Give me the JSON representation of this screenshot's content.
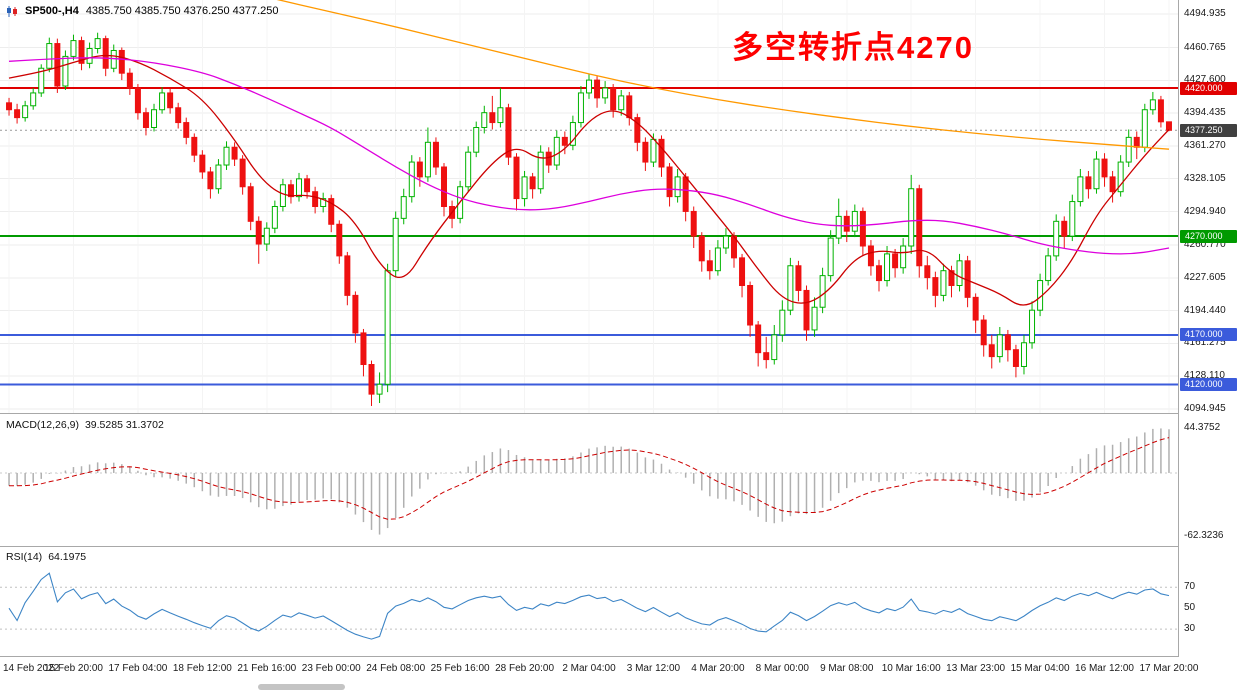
{
  "header": {
    "symbol": "SP500-,H4",
    "ohlc_text": "4385.750 4385.750 4376.250 4377.250"
  },
  "annotation": {
    "text": "多空转折点4270",
    "color": "#fe0000"
  },
  "panels": {
    "macd": {
      "label": "MACD(12,26,9)",
      "values": "39.5285 31.3702"
    },
    "rsi": {
      "label": "RSI(14)",
      "value": "64.1975"
    }
  },
  "chart_data": {
    "type": "candlestick",
    "symbol": "SP500-",
    "timeframe": "H4",
    "title": "SP500-,H4 4385.750 4385.750 4376.250 4377.250",
    "last_bar": {
      "open": 4385.75,
      "high": 4385.75,
      "low": 4376.25,
      "close": 4377.25
    },
    "ylim": [
      4094.945,
      4494.935
    ],
    "price_ticks": [
      "4494.935",
      "4460.765",
      "4427.600",
      "4394.435",
      "4361.270",
      "4328.105",
      "4294.940",
      "4260.770",
      "4227.605",
      "4194.440",
      "4161.275",
      "4128.110",
      "4094.945"
    ],
    "time_labels": [
      "14 Feb 2022",
      "15 Feb 20:00",
      "17 Feb 04:00",
      "18 Feb 12:00",
      "21 Feb 16:00",
      "23 Feb 00:00",
      "24 Feb 08:00",
      "25 Feb 16:00",
      "28 Feb 20:00",
      "2 Mar 04:00",
      "3 Mar 12:00",
      "4 Mar 20:00",
      "8 Mar 00:00",
      "9 Mar 08:00",
      "10 Mar 16:00",
      "13 Mar 23:00",
      "15 Mar 04:00",
      "16 Mar 12:00",
      "17 Mar 20:00"
    ],
    "bars_per_label": 8,
    "up_color": "#00b300",
    "down_color": "#ee1111",
    "grid_color": "#ededed",
    "candles": [
      [
        4405,
        4410,
        4392,
        4398
      ],
      [
        4398,
        4404,
        4384,
        4390
      ],
      [
        4390,
        4407,
        4386,
        4402
      ],
      [
        4402,
        4420,
        4398,
        4415
      ],
      [
        4415,
        4444,
        4411,
        4440
      ],
      [
        4440,
        4471,
        4436,
        4465
      ],
      [
        4465,
        4470,
        4415,
        4422
      ],
      [
        4422,
        4458,
        4418,
        4452
      ],
      [
        4452,
        4474,
        4448,
        4468
      ],
      [
        4468,
        4472,
        4438,
        4445
      ],
      [
        4445,
        4466,
        4440,
        4460
      ],
      [
        4460,
        4476,
        4455,
        4470
      ],
      [
        4470,
        4473,
        4432,
        4440
      ],
      [
        4440,
        4464,
        4436,
        4458
      ],
      [
        4458,
        4461,
        4428,
        4435
      ],
      [
        4435,
        4440,
        4413,
        4420
      ],
      [
        4420,
        4424,
        4388,
        4395
      ],
      [
        4395,
        4400,
        4372,
        4380
      ],
      [
        4380,
        4404,
        4376,
        4398
      ],
      [
        4398,
        4421,
        4394,
        4415
      ],
      [
        4415,
        4419,
        4394,
        4400
      ],
      [
        4400,
        4405,
        4379,
        4385
      ],
      [
        4385,
        4390,
        4363,
        4370
      ],
      [
        4370,
        4374,
        4345,
        4352
      ],
      [
        4352,
        4357,
        4328,
        4335
      ],
      [
        4335,
        4340,
        4308,
        4318
      ],
      [
        4318,
        4348,
        4313,
        4342
      ],
      [
        4342,
        4366,
        4337,
        4360
      ],
      [
        4360,
        4365,
        4341,
        4348
      ],
      [
        4348,
        4352,
        4312,
        4320
      ],
      [
        4320,
        4324,
        4276,
        4285
      ],
      [
        4285,
        4290,
        4242,
        4262
      ],
      [
        4262,
        4284,
        4255,
        4278
      ],
      [
        4278,
        4306,
        4273,
        4300
      ],
      [
        4300,
        4328,
        4295,
        4322
      ],
      [
        4322,
        4327,
        4303,
        4310
      ],
      [
        4310,
        4334,
        4305,
        4328
      ],
      [
        4328,
        4332,
        4308,
        4315
      ],
      [
        4315,
        4320,
        4293,
        4300
      ],
      [
        4300,
        4314,
        4294,
        4308
      ],
      [
        4308,
        4312,
        4274,
        4282
      ],
      [
        4282,
        4286,
        4242,
        4250
      ],
      [
        4250,
        4254,
        4200,
        4210
      ],
      [
        4210,
        4214,
        4162,
        4172
      ],
      [
        4172,
        4176,
        4128,
        4140
      ],
      [
        4140,
        4144,
        4098,
        4110
      ],
      [
        4110,
        4132,
        4101,
        4120
      ],
      [
        4120,
        4242,
        4112,
        4235
      ],
      [
        4235,
        4295,
        4228,
        4288
      ],
      [
        4288,
        4318,
        4282,
        4310
      ],
      [
        4310,
        4352,
        4304,
        4345
      ],
      [
        4345,
        4350,
        4320,
        4330
      ],
      [
        4330,
        4380,
        4325,
        4365
      ],
      [
        4365,
        4370,
        4332,
        4340
      ],
      [
        4340,
        4344,
        4290,
        4300
      ],
      [
        4300,
        4306,
        4278,
        4288
      ],
      [
        4288,
        4326,
        4283,
        4320
      ],
      [
        4320,
        4361,
        4315,
        4355
      ],
      [
        4355,
        4386,
        4350,
        4380
      ],
      [
        4380,
        4402,
        4374,
        4395
      ],
      [
        4395,
        4412,
        4378,
        4385
      ],
      [
        4385,
        4420,
        4380,
        4400
      ],
      [
        4400,
        4404,
        4342,
        4350
      ],
      [
        4350,
        4354,
        4296,
        4308
      ],
      [
        4308,
        4336,
        4300,
        4330
      ],
      [
        4330,
        4334,
        4308,
        4318
      ],
      [
        4318,
        4362,
        4313,
        4355
      ],
      [
        4355,
        4360,
        4334,
        4342
      ],
      [
        4342,
        4377,
        4337,
        4370
      ],
      [
        4370,
        4376,
        4353,
        4362
      ],
      [
        4362,
        4392,
        4357,
        4385
      ],
      [
        4385,
        4422,
        4380,
        4415
      ],
      [
        4415,
        4434,
        4409,
        4428
      ],
      [
        4428,
        4432,
        4400,
        4410
      ],
      [
        4410,
        4427,
        4404,
        4420
      ],
      [
        4420,
        4424,
        4390,
        4398
      ],
      [
        4398,
        4418,
        4392,
        4412
      ],
      [
        4412,
        4416,
        4382,
        4390
      ],
      [
        4390,
        4394,
        4356,
        4365
      ],
      [
        4365,
        4370,
        4336,
        4345
      ],
      [
        4345,
        4374,
        4340,
        4368
      ],
      [
        4368,
        4372,
        4330,
        4340
      ],
      [
        4340,
        4344,
        4300,
        4310
      ],
      [
        4310,
        4338,
        4304,
        4330
      ],
      [
        4330,
        4334,
        4285,
        4295
      ],
      [
        4295,
        4300,
        4258,
        4270
      ],
      [
        4270,
        4274,
        4234,
        4245
      ],
      [
        4245,
        4256,
        4226,
        4235
      ],
      [
        4235,
        4266,
        4230,
        4258
      ],
      [
        4258,
        4278,
        4252,
        4270
      ],
      [
        4270,
        4274,
        4238,
        4248
      ],
      [
        4248,
        4252,
        4208,
        4220
      ],
      [
        4220,
        4224,
        4168,
        4180
      ],
      [
        4180,
        4184,
        4138,
        4152
      ],
      [
        4152,
        4168,
        4136,
        4145
      ],
      [
        4145,
        4180,
        4140,
        4170
      ],
      [
        4170,
        4205,
        4163,
        4195
      ],
      [
        4195,
        4248,
        4190,
        4240
      ],
      [
        4240,
        4245,
        4204,
        4215
      ],
      [
        4215,
        4220,
        4164,
        4175
      ],
      [
        4175,
        4208,
        4168,
        4198
      ],
      [
        4198,
        4238,
        4192,
        4230
      ],
      [
        4230,
        4276,
        4224,
        4268
      ],
      [
        4268,
        4308,
        4262,
        4290
      ],
      [
        4290,
        4296,
        4264,
        4275
      ],
      [
        4275,
        4302,
        4269,
        4295
      ],
      [
        4295,
        4299,
        4250,
        4260
      ],
      [
        4260,
        4266,
        4230,
        4240
      ],
      [
        4240,
        4246,
        4214,
        4225
      ],
      [
        4225,
        4260,
        4219,
        4252
      ],
      [
        4252,
        4257,
        4228,
        4238
      ],
      [
        4238,
        4268,
        4232,
        4260
      ],
      [
        4260,
        4332,
        4252,
        4318
      ],
      [
        4318,
        4322,
        4228,
        4240
      ],
      [
        4240,
        4250,
        4216,
        4228
      ],
      [
        4228,
        4234,
        4198,
        4210
      ],
      [
        4210,
        4242,
        4204,
        4235
      ],
      [
        4235,
        4240,
        4208,
        4220
      ],
      [
        4220,
        4252,
        4214,
        4245
      ],
      [
        4245,
        4250,
        4198,
        4208
      ],
      [
        4208,
        4212,
        4172,
        4185
      ],
      [
        4185,
        4190,
        4148,
        4160
      ],
      [
        4160,
        4170,
        4136,
        4148
      ],
      [
        4148,
        4178,
        4142,
        4170
      ],
      [
        4170,
        4175,
        4143,
        4155
      ],
      [
        4155,
        4160,
        4127,
        4138
      ],
      [
        4138,
        4170,
        4130,
        4162
      ],
      [
        4162,
        4204,
        4156,
        4195
      ],
      [
        4195,
        4232,
        4189,
        4225
      ],
      [
        4225,
        4258,
        4220,
        4250
      ],
      [
        4250,
        4292,
        4245,
        4285
      ],
      [
        4285,
        4290,
        4258,
        4270
      ],
      [
        4270,
        4312,
        4265,
        4305
      ],
      [
        4305,
        4338,
        4300,
        4330
      ],
      [
        4330,
        4336,
        4308,
        4318
      ],
      [
        4318,
        4356,
        4313,
        4348
      ],
      [
        4348,
        4354,
        4320,
        4330
      ],
      [
        4330,
        4336,
        4304,
        4315
      ],
      [
        4315,
        4352,
        4310,
        4345
      ],
      [
        4345,
        4378,
        4340,
        4370
      ],
      [
        4370,
        4376,
        4348,
        4360
      ],
      [
        4360,
        4404,
        4355,
        4398
      ],
      [
        4398,
        4416,
        4393,
        4408
      ],
      [
        4408,
        4412,
        4380,
        4385.75
      ],
      [
        4385.75,
        4385.75,
        4376.25,
        4377.25
      ]
    ],
    "hlines": [
      {
        "price": 4420.0,
        "label": "4420.000",
        "color": "#e00000",
        "width": 2
      },
      {
        "price": 4270.0,
        "label": "4270.000",
        "color": "#009a00",
        "width": 2
      },
      {
        "price": 4170.0,
        "label": "4170.000",
        "color": "#3b5bdb",
        "width": 2
      },
      {
        "price": 4120.0,
        "label": "4120.000",
        "color": "#3b5bdb",
        "width": 2
      }
    ],
    "current_price": {
      "value": 4377.25,
      "label": "4377.250",
      "badge_color": "#404040",
      "line_color": "#999999"
    },
    "overlays": [
      {
        "name": "ma-fast-line",
        "color": "#cc0000",
        "points": [
          [
            0,
            4430
          ],
          [
            4,
            4436
          ],
          [
            8,
            4446
          ],
          [
            12,
            4455
          ],
          [
            16,
            4447
          ],
          [
            20,
            4430
          ],
          [
            24,
            4410
          ],
          [
            28,
            4368
          ],
          [
            31,
            4330
          ],
          [
            34,
            4310
          ],
          [
            37,
            4312
          ],
          [
            40,
            4305
          ],
          [
            43,
            4285
          ],
          [
            46,
            4240
          ],
          [
            49,
            4222
          ],
          [
            52,
            4262
          ],
          [
            56,
            4305
          ],
          [
            60,
            4345
          ],
          [
            63,
            4362
          ],
          [
            66,
            4346
          ],
          [
            69,
            4356
          ],
          [
            72,
            4388
          ],
          [
            75,
            4400
          ],
          [
            78,
            4386
          ],
          [
            81,
            4360
          ],
          [
            84,
            4330
          ],
          [
            87,
            4300
          ],
          [
            90,
            4270
          ],
          [
            93,
            4236
          ],
          [
            96,
            4206
          ],
          [
            99,
            4200
          ],
          [
            102,
            4216
          ],
          [
            105,
            4248
          ],
          [
            108,
            4256
          ],
          [
            111,
            4252
          ],
          [
            114,
            4258
          ],
          [
            117,
            4232
          ],
          [
            120,
            4222
          ],
          [
            123,
            4212
          ],
          [
            126,
            4196
          ],
          [
            129,
            4214
          ],
          [
            132,
            4245
          ],
          [
            135,
            4292
          ],
          [
            138,
            4322
          ],
          [
            141,
            4352
          ],
          [
            144,
            4378
          ]
        ]
      },
      {
        "name": "ma-medium-line",
        "color": "#dd00dd",
        "points": [
          [
            0,
            4447
          ],
          [
            6,
            4450
          ],
          [
            12,
            4451
          ],
          [
            18,
            4446
          ],
          [
            24,
            4436
          ],
          [
            28,
            4424
          ],
          [
            32,
            4410
          ],
          [
            36,
            4395
          ],
          [
            40,
            4380
          ],
          [
            44,
            4360
          ],
          [
            48,
            4340
          ],
          [
            52,
            4322
          ],
          [
            56,
            4308
          ],
          [
            60,
            4300
          ],
          [
            64,
            4296
          ],
          [
            68,
            4298
          ],
          [
            72,
            4305
          ],
          [
            76,
            4313
          ],
          [
            80,
            4318
          ],
          [
            84,
            4317
          ],
          [
            88,
            4312
          ],
          [
            92,
            4302
          ],
          [
            96,
            4290
          ],
          [
            100,
            4282
          ],
          [
            104,
            4280
          ],
          [
            108,
            4282
          ],
          [
            112,
            4286
          ],
          [
            116,
            4286
          ],
          [
            120,
            4280
          ],
          [
            124,
            4272
          ],
          [
            128,
            4262
          ],
          [
            132,
            4256
          ],
          [
            136,
            4252
          ],
          [
            140,
            4252
          ],
          [
            144,
            4258
          ]
        ]
      },
      {
        "name": "ma-long-line",
        "color": "#ff9900",
        "points": [
          [
            0,
            4580
          ],
          [
            8,
            4562
          ],
          [
            16,
            4545
          ],
          [
            24,
            4528
          ],
          [
            32,
            4512
          ],
          [
            40,
            4497
          ],
          [
            48,
            4482
          ],
          [
            56,
            4466
          ],
          [
            64,
            4450
          ],
          [
            72,
            4434
          ],
          [
            80,
            4420
          ],
          [
            88,
            4408
          ],
          [
            96,
            4398
          ],
          [
            104,
            4389
          ],
          [
            112,
            4381
          ],
          [
            120,
            4374
          ],
          [
            128,
            4368
          ],
          [
            136,
            4363
          ],
          [
            144,
            4358
          ]
        ]
      }
    ],
    "macd": {
      "fast": 12,
      "slow": 26,
      "signal": 9,
      "current_values": [
        39.5285,
        31.3702
      ],
      "axis_top": "44.3752",
      "axis_bottom": "-62.3236",
      "hist_color": "#b0b0b0",
      "signal_color": "#cc0000"
    },
    "rsi": {
      "period": 14,
      "current_value": 64.1975,
      "color": "#3d85c6",
      "levels": [
        70,
        50,
        30
      ]
    }
  }
}
